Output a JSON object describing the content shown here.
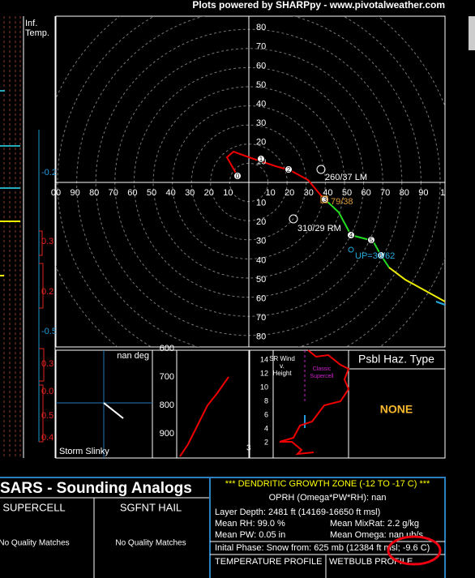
{
  "header": {
    "credit": "Plots powered by SHARPpy - www.pivotalweather.com"
  },
  "inferred_temp": {
    "title": [
      "Inf.",
      "Temp."
    ],
    "labels": [
      "-0.2",
      "0.3",
      "0.2",
      "-0.5",
      "0.3",
      "0.0",
      "0.5",
      "0.4"
    ]
  },
  "hodograph": {
    "y_labels_up": [
      80,
      70,
      60,
      50,
      40,
      30,
      20,
      10
    ],
    "y_labels_down": [
      10,
      20,
      30,
      40,
      50,
      60,
      70,
      80
    ],
    "x_labels_left": [
      "00",
      90,
      80,
      70,
      60,
      50,
      40,
      30,
      20,
      10
    ],
    "x_labels_right": [
      10,
      20,
      30,
      40,
      50,
      60,
      70,
      80,
      90,
      "1"
    ],
    "markers": [
      "0",
      "1",
      "2",
      "3",
      "4",
      "5",
      "6"
    ],
    "left_mover": "260/37 LM",
    "mean_wind": "79/38",
    "right_mover": "310/29 RM",
    "upshear": "UP=30/62"
  },
  "storm_slinky": {
    "angle": "nan deg",
    "title": "Storm Slinky"
  },
  "pressure_panel": {
    "labels": [
      "600",
      "700",
      "800",
      "900"
    ]
  },
  "sr_wind": {
    "title": [
      "SR Wind",
      "v.",
      "Height"
    ],
    "heights": [
      14,
      12,
      10,
      8,
      6,
      4,
      2
    ],
    "supercell": [
      "Classic",
      "Supercell"
    ],
    "corner": "3"
  },
  "hazard": {
    "title": "Psbl Haz. Type",
    "value": "NONE"
  },
  "sars": {
    "title": "SARS - Sounding Analogs",
    "supercell": "SUPERCELL",
    "hail": "SGFNT HAIL",
    "supercell_result": "No Quality Matches",
    "hail_result": "No Quality Matches"
  },
  "dgz": {
    "title": "*** DENDRITIC GROWTH ZONE (-12 TO -17 C) ***",
    "oprh": "OPRH (Omega*PW*RH): nan",
    "layer_depth": "Layer Depth: 2481 ft (14169-16650 ft msl)",
    "mean_rh": "Mean RH: 99.0 %",
    "mean_mixrat": "Mean MixRat: 2.2 g/kg",
    "mean_pw": "Mean PW: 0.05 in",
    "mean_omega": "Mean Omega: nan ub/s",
    "initial_phase": "Inital Phase: Snow from: 625 mb (12384 ft msl; -9.6 C)",
    "temperature_profile": "TEMPERATURE PROFILE",
    "wetbulb_profile": "WETBULB PROFILE"
  }
}
